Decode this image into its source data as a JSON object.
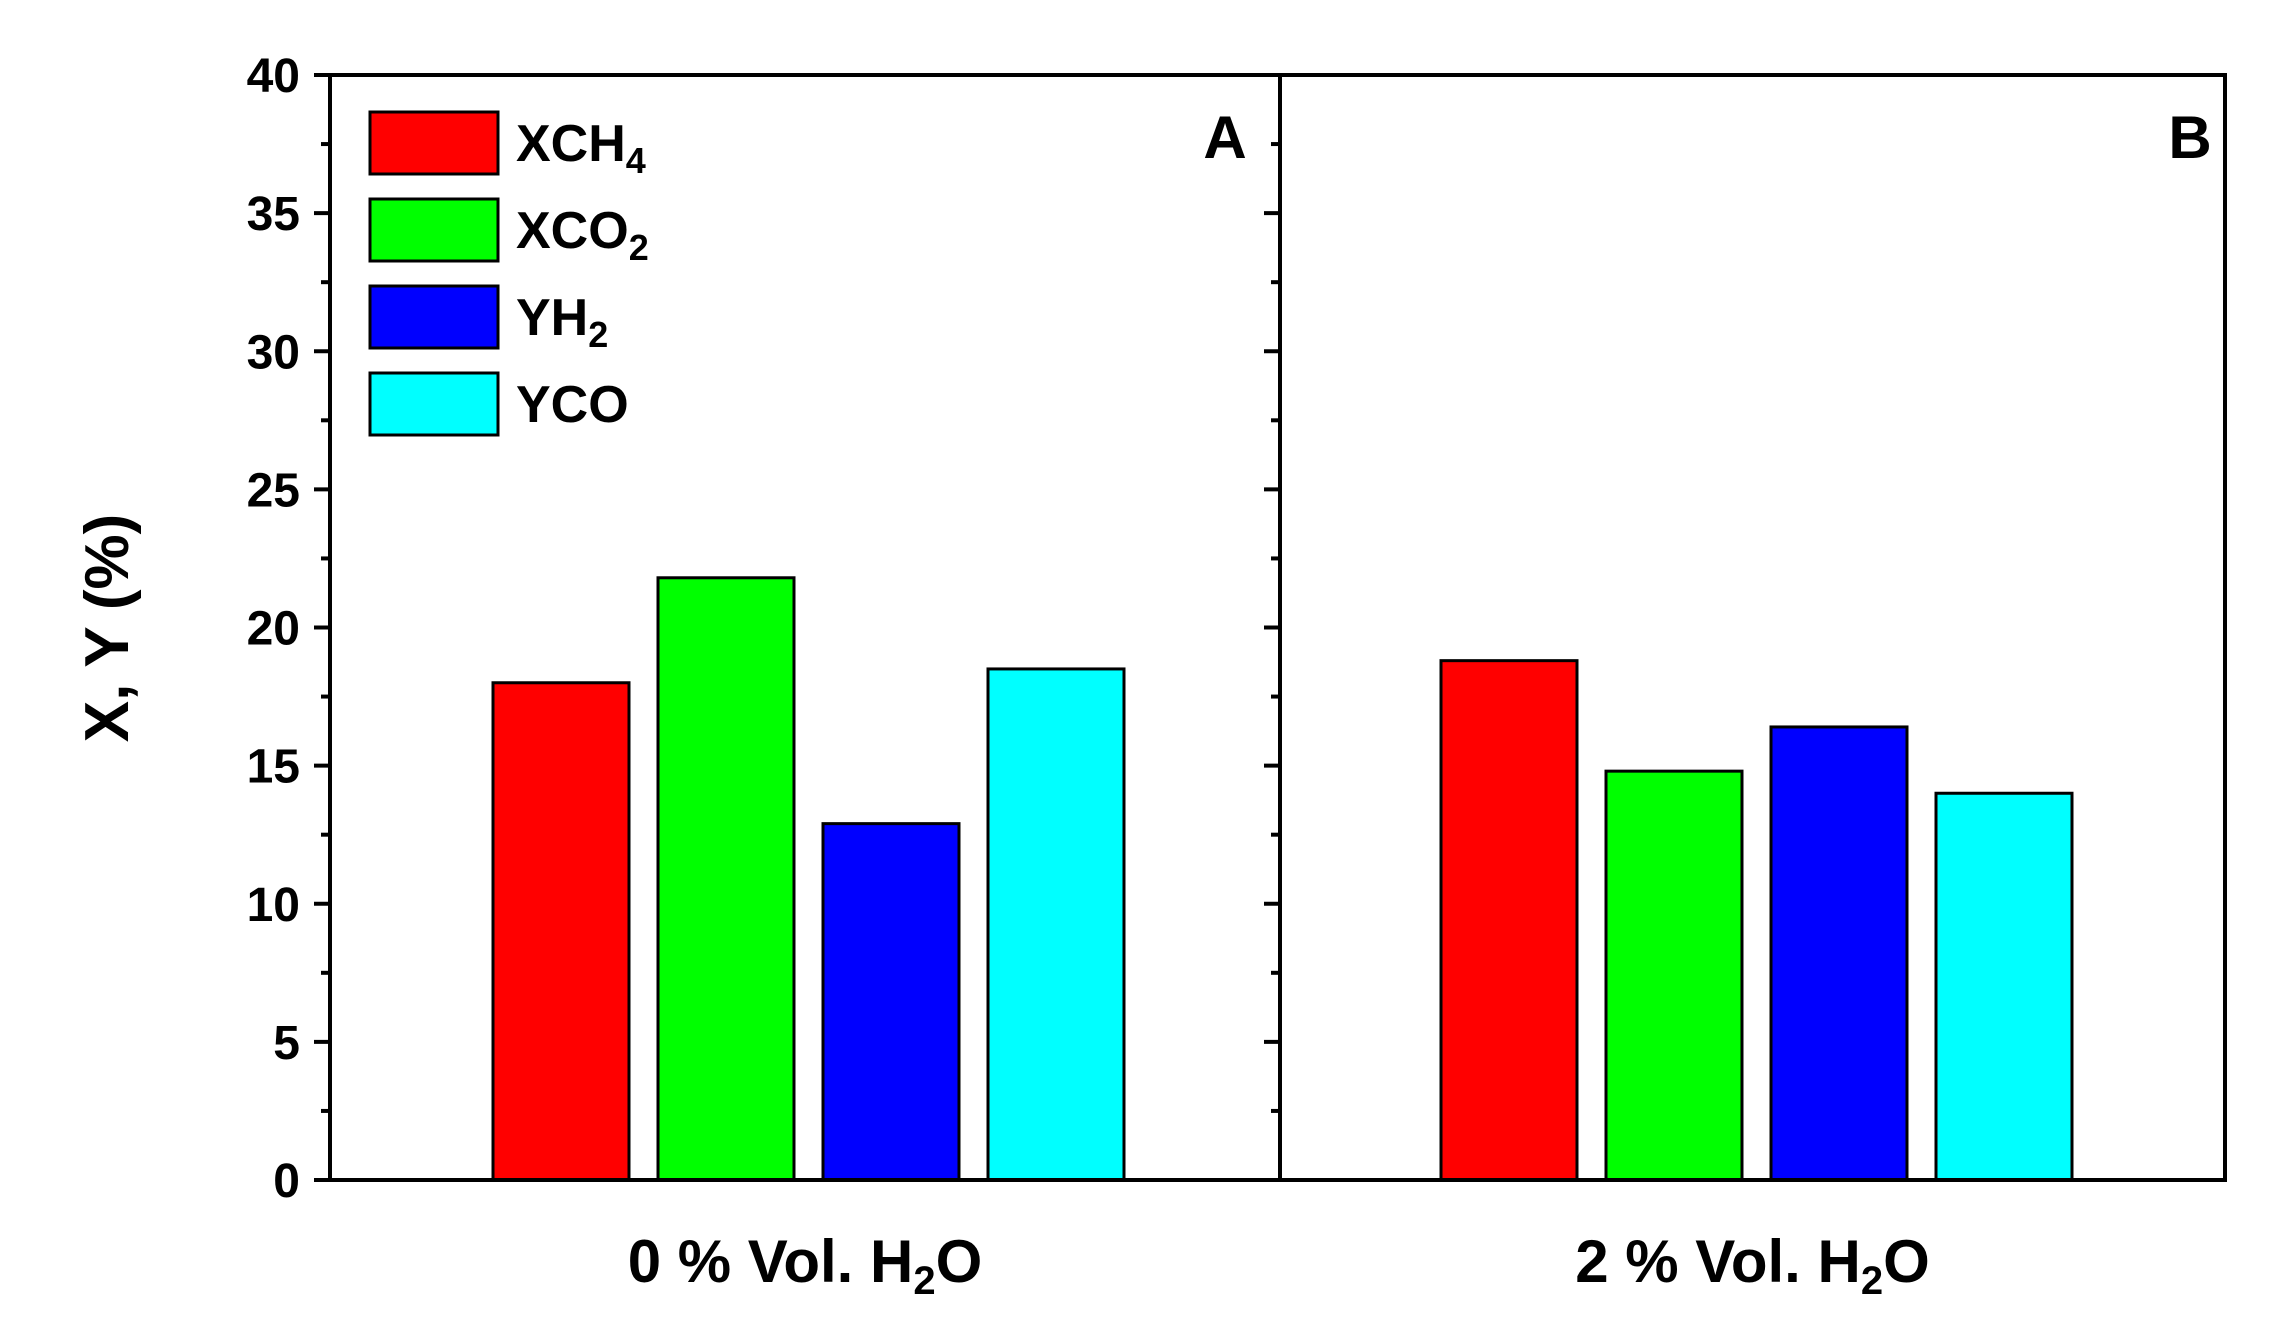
{
  "chart_data": {
    "type": "bar",
    "ylabel": "X, Y (%)",
    "ylim": [
      0,
      40
    ],
    "yticks": [
      "0",
      "5",
      "10",
      "15",
      "20",
      "25",
      "30",
      "35",
      "40"
    ],
    "grid": false,
    "legend_position": "top-left",
    "panels": [
      {
        "letter": "A",
        "category": {
          "base": "0 % Vol. H",
          "sub": "2",
          "tail": "O"
        },
        "values": [
          18.0,
          21.8,
          12.9,
          18.5
        ]
      },
      {
        "letter": "B",
        "category": {
          "base": "2 % Vol. H",
          "sub": "2",
          "tail": "O"
        },
        "values": [
          18.8,
          14.8,
          16.4,
          14.0
        ]
      }
    ],
    "series": [
      {
        "name": "XCH4",
        "base": "XCH",
        "sub": "4",
        "color": "#ff0000"
      },
      {
        "name": "XCO2",
        "base": "XCO",
        "sub": "2",
        "color": "#00ff00"
      },
      {
        "name": "YH2",
        "base": "YH",
        "sub": "2",
        "color": "#0000ff"
      },
      {
        "name": "YCO",
        "base": "YCO",
        "sub": "",
        "color": "#00ffff"
      }
    ]
  }
}
